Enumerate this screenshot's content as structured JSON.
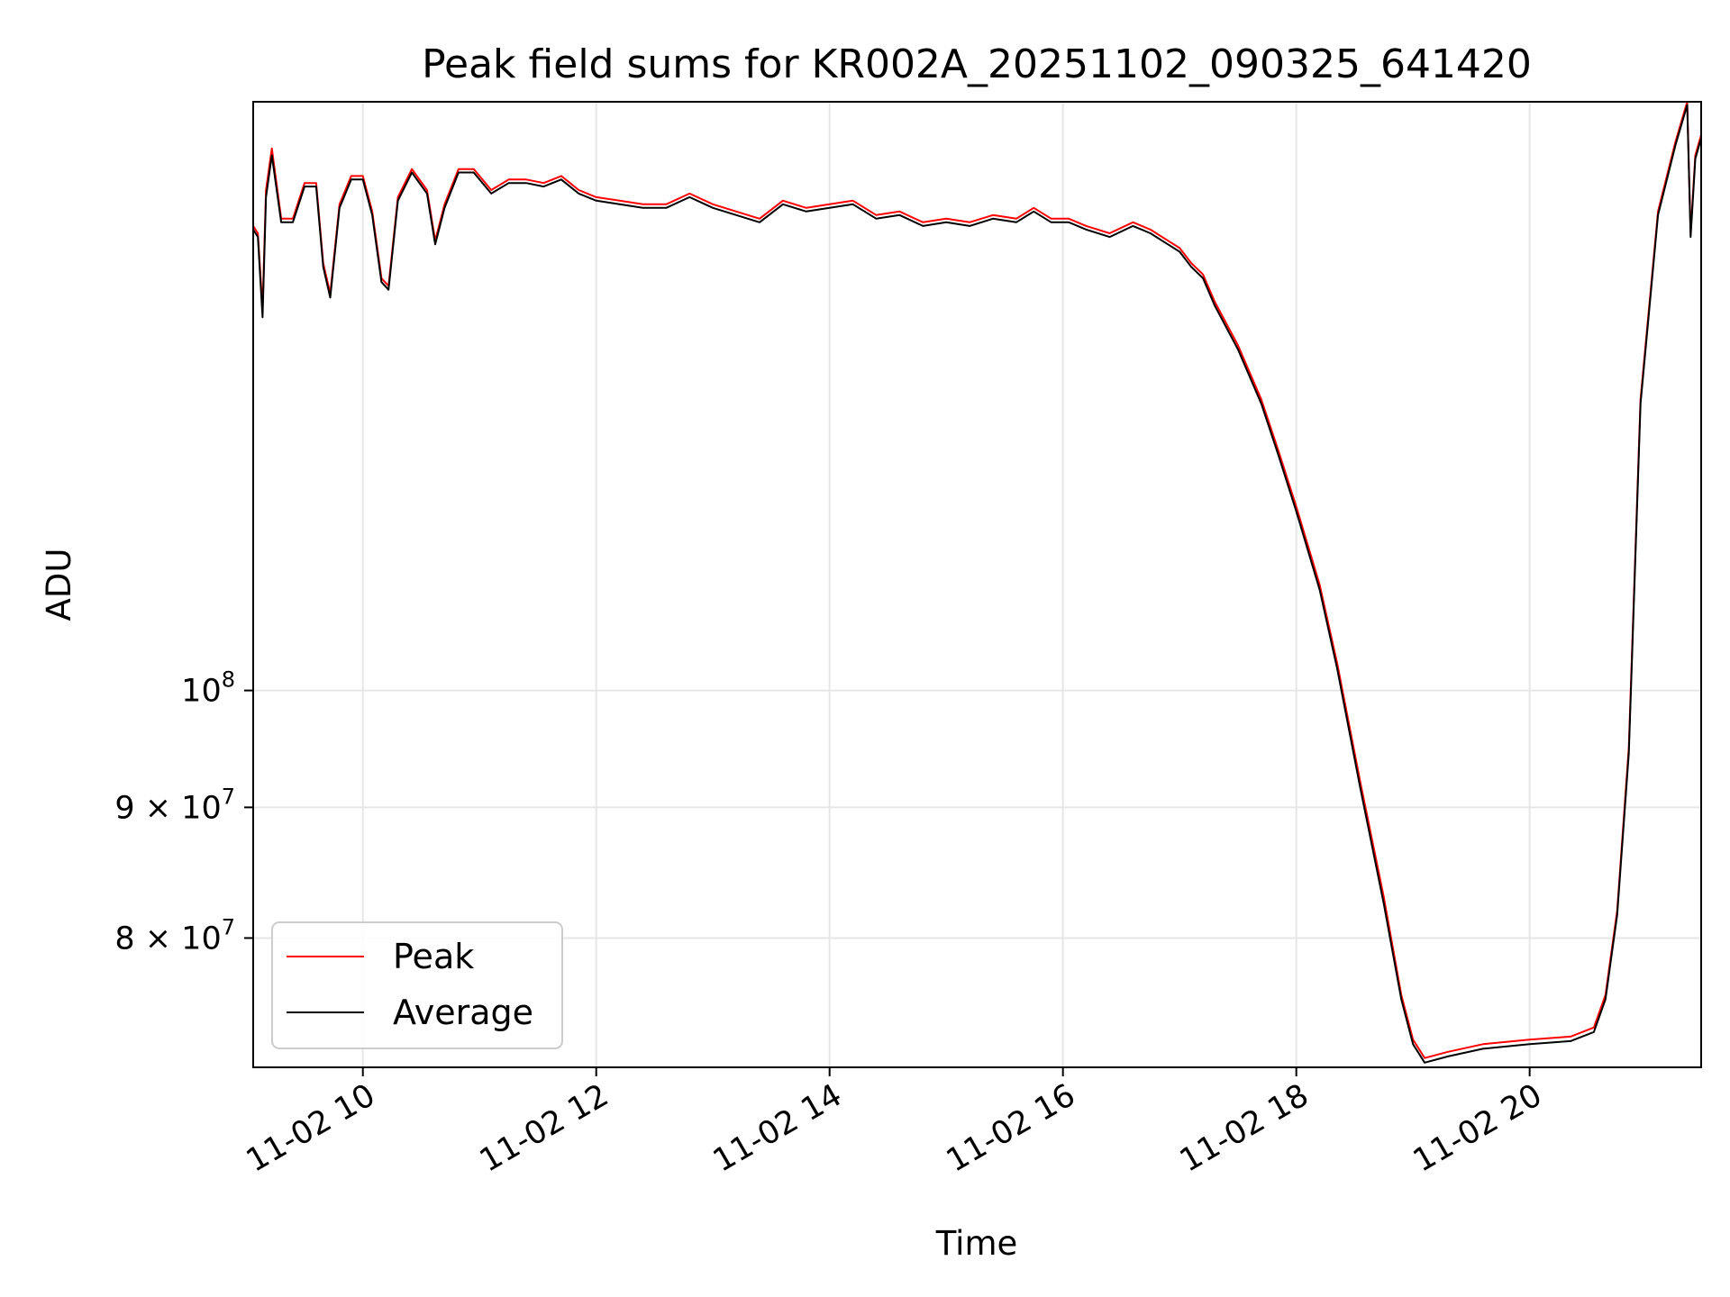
{
  "chart_data": {
    "type": "line",
    "title": "Peak field sums for KR002A_20251102_090325_641420",
    "xlabel": "Time",
    "ylabel": "ADU",
    "y_scale": "log",
    "x_unit": "hours since 2025-11-02 00:00",
    "xlim": [
      9.06,
      21.47
    ],
    "ylim": [
      71200000.0,
      170000000.0
    ],
    "x_ticks": [
      {
        "value": 10,
        "label": "11-02 10"
      },
      {
        "value": 12,
        "label": "11-02 12"
      },
      {
        "value": 14,
        "label": "11-02 14"
      },
      {
        "value": 16,
        "label": "11-02 16"
      },
      {
        "value": 18,
        "label": "11-02 18"
      },
      {
        "value": 20,
        "label": "11-02 20"
      }
    ],
    "y_ticks": [
      {
        "value": 100000000,
        "label_base": "10",
        "label_exp": "8"
      },
      {
        "value": 90000000,
        "label_base": "9 × 10",
        "label_exp": "7"
      },
      {
        "value": 80000000,
        "label_base": "8 × 10",
        "label_exp": "7"
      }
    ],
    "grid": true,
    "legend_position": "lower-left",
    "series": [
      {
        "name": "Peak",
        "color": "#ff0000",
        "points": [
          [
            9.06,
            152000000.0
          ],
          [
            9.1,
            151000000.0
          ],
          [
            9.14,
            141000000.0
          ],
          [
            9.17,
            157000000.0
          ],
          [
            9.22,
            163000000.0
          ],
          [
            9.3,
            153000000.0
          ],
          [
            9.4,
            153000000.0
          ],
          [
            9.5,
            158000000.0
          ],
          [
            9.6,
            158000000.0
          ],
          [
            9.66,
            147000000.0
          ],
          [
            9.72,
            143000000.0
          ],
          [
            9.8,
            155000000.0
          ],
          [
            9.9,
            159000000.0
          ],
          [
            10.0,
            159000000.0
          ],
          [
            10.08,
            154000000.0
          ],
          [
            10.16,
            145000000.0
          ],
          [
            10.22,
            144000000.0
          ],
          [
            10.3,
            156000000.0
          ],
          [
            10.42,
            160000000.0
          ],
          [
            10.55,
            157000000.0
          ],
          [
            10.62,
            150000000.0
          ],
          [
            10.7,
            155000000.0
          ],
          [
            10.82,
            160000000.0
          ],
          [
            10.95,
            160000000.0
          ],
          [
            11.1,
            157000000.0
          ],
          [
            11.25,
            158500000.0
          ],
          [
            11.4,
            158500000.0
          ],
          [
            11.55,
            158000000.0
          ],
          [
            11.7,
            159000000.0
          ],
          [
            11.85,
            157000000.0
          ],
          [
            12.0,
            156000000.0
          ],
          [
            12.2,
            155500000.0
          ],
          [
            12.4,
            155000000.0
          ],
          [
            12.6,
            155000000.0
          ],
          [
            12.8,
            156500000.0
          ],
          [
            13.0,
            155000000.0
          ],
          [
            13.2,
            154000000.0
          ],
          [
            13.4,
            153000000.0
          ],
          [
            13.6,
            155500000.0
          ],
          [
            13.8,
            154500000.0
          ],
          [
            14.0,
            155000000.0
          ],
          [
            14.2,
            155500000.0
          ],
          [
            14.4,
            153500000.0
          ],
          [
            14.6,
            154000000.0
          ],
          [
            14.8,
            152500000.0
          ],
          [
            15.0,
            153000000.0
          ],
          [
            15.2,
            152500000.0
          ],
          [
            15.4,
            153500000.0
          ],
          [
            15.6,
            153000000.0
          ],
          [
            15.75,
            154500000.0
          ],
          [
            15.9,
            153000000.0
          ],
          [
            16.05,
            153000000.0
          ],
          [
            16.2,
            152000000.0
          ],
          [
            16.4,
            151000000.0
          ],
          [
            16.6,
            152500000.0
          ],
          [
            16.75,
            151500000.0
          ],
          [
            16.9,
            150000000.0
          ],
          [
            17.0,
            149000000.0
          ],
          [
            17.1,
            147000000.0
          ],
          [
            17.2,
            145500000.0
          ],
          [
            17.3,
            142000000.0
          ],
          [
            17.5,
            136500000.0
          ],
          [
            17.7,
            130000000.0
          ],
          [
            17.85,
            124000000.0
          ],
          [
            18.0,
            118000000.0
          ],
          [
            18.2,
            110000000.0
          ],
          [
            18.35,
            102500000.0
          ],
          [
            18.55,
            92000000.0
          ],
          [
            18.75,
            83000000.0
          ],
          [
            18.9,
            76000000.0
          ],
          [
            19.0,
            73000000.0
          ],
          [
            19.1,
            71800000.0
          ],
          [
            19.3,
            72200000.0
          ],
          [
            19.6,
            72700000.0
          ],
          [
            20.0,
            73000000.0
          ],
          [
            20.35,
            73200000.0
          ],
          [
            20.55,
            73800000.0
          ],
          [
            20.65,
            76000000.0
          ],
          [
            20.75,
            82000000.0
          ],
          [
            20.85,
            95000000.0
          ],
          [
            20.95,
            130000000.0
          ],
          [
            21.1,
            154000000.0
          ],
          [
            21.25,
            164000000.0
          ],
          [
            21.35,
            170000000.0
          ],
          [
            21.38,
            151000000.0
          ],
          [
            21.42,
            162000000.0
          ],
          [
            21.47,
            165000000.0
          ]
        ]
      },
      {
        "name": "Average",
        "color": "#000000",
        "points": [
          [
            9.06,
            151500000.0
          ],
          [
            9.1,
            150500000.0
          ],
          [
            9.14,
            140000000.0
          ],
          [
            9.17,
            156000000.0
          ],
          [
            9.22,
            162000000.0
          ],
          [
            9.3,
            152500000.0
          ],
          [
            9.4,
            152500000.0
          ],
          [
            9.5,
            157500000.0
          ],
          [
            9.6,
            157500000.0
          ],
          [
            9.66,
            146500000.0
          ],
          [
            9.72,
            142500000.0
          ],
          [
            9.8,
            154500000.0
          ],
          [
            9.9,
            158500000.0
          ],
          [
            10.0,
            158500000.0
          ],
          [
            10.08,
            153500000.0
          ],
          [
            10.16,
            144500000.0
          ],
          [
            10.22,
            143500000.0
          ],
          [
            10.3,
            155500000.0
          ],
          [
            10.42,
            159500000.0
          ],
          [
            10.55,
            156500000.0
          ],
          [
            10.62,
            149500000.0
          ],
          [
            10.7,
            154500000.0
          ],
          [
            10.82,
            159500000.0
          ],
          [
            10.95,
            159500000.0
          ],
          [
            11.1,
            156500000.0
          ],
          [
            11.25,
            158000000.0
          ],
          [
            11.4,
            158000000.0
          ],
          [
            11.55,
            157500000.0
          ],
          [
            11.7,
            158500000.0
          ],
          [
            11.85,
            156500000.0
          ],
          [
            12.0,
            155500000.0
          ],
          [
            12.2,
            155000000.0
          ],
          [
            12.4,
            154500000.0
          ],
          [
            12.6,
            154500000.0
          ],
          [
            12.8,
            156000000.0
          ],
          [
            13.0,
            154500000.0
          ],
          [
            13.2,
            153500000.0
          ],
          [
            13.4,
            152500000.0
          ],
          [
            13.6,
            155000000.0
          ],
          [
            13.8,
            154000000.0
          ],
          [
            14.0,
            154500000.0
          ],
          [
            14.2,
            155000000.0
          ],
          [
            14.4,
            153000000.0
          ],
          [
            14.6,
            153500000.0
          ],
          [
            14.8,
            152000000.0
          ],
          [
            15.0,
            152500000.0
          ],
          [
            15.2,
            152000000.0
          ],
          [
            15.4,
            153000000.0
          ],
          [
            15.6,
            152500000.0
          ],
          [
            15.75,
            154000000.0
          ],
          [
            15.9,
            152500000.0
          ],
          [
            16.05,
            152500000.0
          ],
          [
            16.2,
            151500000.0
          ],
          [
            16.4,
            150500000.0
          ],
          [
            16.6,
            152000000.0
          ],
          [
            16.75,
            151000000.0
          ],
          [
            16.9,
            149500000.0
          ],
          [
            17.0,
            148500000.0
          ],
          [
            17.1,
            146500000.0
          ],
          [
            17.2,
            145000000.0
          ],
          [
            17.3,
            141500000.0
          ],
          [
            17.5,
            136000000.0
          ],
          [
            17.7,
            129500000.0
          ],
          [
            17.85,
            123500000.0
          ],
          [
            18.0,
            117500000.0
          ],
          [
            18.2,
            109500000.0
          ],
          [
            18.35,
            102000000.0
          ],
          [
            18.55,
            91500000.0
          ],
          [
            18.75,
            82500000.0
          ],
          [
            18.9,
            75700000.0
          ],
          [
            19.0,
            72700000.0
          ],
          [
            19.1,
            71500000.0
          ],
          [
            19.3,
            71900000.0
          ],
          [
            19.6,
            72400000.0
          ],
          [
            20.0,
            72700000.0
          ],
          [
            20.35,
            72900000.0
          ],
          [
            20.55,
            73500000.0
          ],
          [
            20.65,
            75700000.0
          ],
          [
            20.75,
            81700000.0
          ],
          [
            20.85,
            94500000.0
          ],
          [
            20.95,
            129500000.0
          ],
          [
            21.1,
            153500000.0
          ],
          [
            21.25,
            163500000.0
          ],
          [
            21.35,
            169500000.0
          ],
          [
            21.38,
            150500000.0
          ],
          [
            21.42,
            161500000.0
          ],
          [
            21.47,
            164500000.0
          ]
        ]
      }
    ]
  }
}
